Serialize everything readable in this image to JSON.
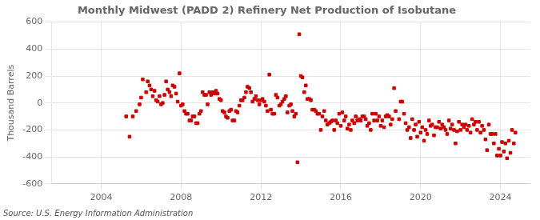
{
  "chart_data": {
    "type": "scatter",
    "title": "Monthly Midwest (PADD 2) Refinery Net Production of Isobutane",
    "ylabel": "Thousand Barrels",
    "source": "Source: U.S. Energy Information Administration",
    "color": "#cc0000",
    "marker": "square",
    "grid": true,
    "xlim": [
      2001.5,
      2025.5
    ],
    "xticks": [
      2004,
      2008,
      2012,
      2016,
      2020,
      2024
    ],
    "ylim": [
      -600,
      600
    ],
    "yticks": [
      -600,
      -400,
      -200,
      0,
      200,
      400,
      600
    ],
    "x": [
      2005.25,
      2005.42,
      2005.58,
      2005.75,
      2005.92,
      2006.08,
      2006.25,
      2006.42,
      2006.58,
      2006.75,
      2006.92,
      2007.08,
      2007.25,
      2007.42,
      2007.58,
      2007.75,
      2007.92,
      2008.08,
      2008.25,
      2008.42,
      2008.58,
      2008.75,
      2008.92,
      2009.08,
      2009.25,
      2009.42,
      2009.58,
      2009.75,
      2009.92,
      2010.08,
      2010.25,
      2010.42,
      2010.58,
      2010.75,
      2010.92,
      2011.08,
      2011.25,
      2011.42,
      2011.58,
      2011.75,
      2011.92,
      2012.08,
      2012.25,
      2012.42,
      2012.58,
      2012.75,
      2012.92,
      2013.08,
      2013.25,
      2013.42,
      2013.58,
      2013.75,
      2013.83,
      2013.92,
      2014.08,
      2014.25,
      2014.42,
      2014.58,
      2014.75,
      2014.92,
      2015.08,
      2015.25,
      2015.42,
      2015.58,
      2015.75,
      2015.92,
      2016.08,
      2016.25,
      2016.42,
      2016.58,
      2016.75,
      2016.92,
      2017.08,
      2017.25,
      2017.42,
      2017.58,
      2017.75,
      2017.92,
      2018.08,
      2018.25,
      2018.42,
      2018.58,
      2018.67,
      2018.75,
      2018.92,
      2019.08,
      2019.25,
      2019.42,
      2019.58,
      2019.75,
      2019.92,
      2020.08,
      2020.25,
      2020.42,
      2020.58,
      2020.75,
      2020.92,
      2021.08,
      2021.25,
      2021.42,
      2021.58,
      2021.75,
      2021.92,
      2022.08,
      2022.25,
      2022.42,
      2022.58,
      2022.75,
      2022.92,
      2023.08,
      2023.25,
      2023.42,
      2023.58,
      2023.75,
      2023.92,
      2024.08,
      2024.25,
      2024.42,
      2024.58,
      2024.75,
      2006.0,
      2006.33,
      2006.5,
      2006.67,
      2006.83,
      2007.0,
      2007.17,
      2007.33,
      2007.5,
      2007.67,
      2007.83,
      2008.0,
      2008.17,
      2008.33,
      2008.5,
      2008.67,
      2008.83,
      2009.0,
      2009.17,
      2009.33,
      2009.5,
      2009.67,
      2009.83,
      2010.0,
      2010.17,
      2010.33,
      2010.5,
      2010.67,
      2010.83,
      2011.0,
      2011.17,
      2011.33,
      2011.5,
      2011.67,
      2011.83,
      2012.0,
      2012.17,
      2012.33,
      2012.5,
      2012.67,
      2012.83,
      2013.0,
      2013.17,
      2013.33,
      2013.5,
      2013.67,
      2014.0,
      2014.17,
      2014.33,
      2014.5,
      2014.67,
      2014.83,
      2015.0,
      2015.17,
      2015.33,
      2015.5,
      2015.67,
      2015.83,
      2016.0,
      2016.17,
      2016.33,
      2016.5,
      2016.67,
      2016.83,
      2017.0,
      2017.17,
      2017.33,
      2017.5,
      2017.67,
      2017.83,
      2018.0,
      2018.17,
      2018.33,
      2018.5,
      2019.0,
      2019.17,
      2019.33,
      2019.5,
      2019.67,
      2019.83,
      2020.0,
      2020.17,
      2020.33,
      2020.5,
      2020.67,
      2020.83,
      2021.0,
      2021.17,
      2021.33,
      2021.5,
      2021.67,
      2021.83,
      2022.0,
      2022.17,
      2022.33,
      2022.5,
      2022.67,
      2022.83,
      2023.0,
      2023.17,
      2023.33,
      2023.5,
      2023.67,
      2023.83,
      2024.0,
      2024.17,
      2024.33,
      2024.5,
      2024.67
    ],
    "values": [
      -100,
      -250,
      -100,
      -60,
      -10,
      175,
      80,
      130,
      50,
      20,
      50,
      0,
      160,
      80,
      130,
      70,
      220,
      -10,
      -80,
      -130,
      -100,
      -150,
      -80,
      80,
      60,
      80,
      80,
      90,
      30,
      -60,
      -100,
      -60,
      -130,
      -60,
      -20,
      20,
      80,
      110,
      10,
      50,
      -10,
      30,
      -20,
      210,
      -80,
      60,
      -20,
      10,
      50,
      -20,
      -60,
      -80,
      -440,
      510,
      190,
      130,
      30,
      -50,
      -60,
      -80,
      -100,
      -130,
      -150,
      -130,
      -130,
      -80,
      -70,
      -100,
      -160,
      -130,
      -100,
      -120,
      -100,
      -120,
      -150,
      -80,
      -80,
      -100,
      -130,
      -100,
      -100,
      -120,
      110,
      -60,
      -120,
      10,
      -150,
      -180,
      -120,
      -160,
      -140,
      -180,
      -200,
      -130,
      -160,
      -180,
      -140,
      -160,
      -200,
      -130,
      -160,
      -300,
      -140,
      -160,
      -160,
      -170,
      -120,
      -140,
      -140,
      -170,
      -270,
      -160,
      -230,
      -230,
      -340,
      -290,
      -300,
      -280,
      -200,
      -220,
      40,
      160,
      100,
      90,
      10,
      -10,
      60,
      100,
      50,
      120,
      10,
      -20,
      -60,
      -80,
      -130,
      -100,
      -150,
      -60,
      60,
      -10,
      60,
      70,
      70,
      20,
      -70,
      -110,
      -50,
      -130,
      -70,
      20,
      40,
      120,
      80,
      30,
      20,
      20,
      10,
      -60,
      -50,
      -80,
      40,
      -10,
      30,
      -70,
      -10,
      -100,
      200,
      80,
      30,
      20,
      -50,
      -80,
      -200,
      -60,
      -160,
      -140,
      -200,
      -150,
      -170,
      -130,
      -190,
      -200,
      -150,
      -130,
      -130,
      -100,
      -170,
      -200,
      -130,
      -130,
      -170,
      -180,
      -90,
      -160,
      10,
      -80,
      -200,
      -260,
      -200,
      -250,
      -220,
      -280,
      -230,
      -170,
      -240,
      -180,
      -190,
      -180,
      -230,
      -190,
      -200,
      -210,
      -200,
      -180,
      -200,
      -220,
      -160,
      -200,
      -220,
      -200,
      -350,
      -230,
      -300,
      -390,
      -390,
      -360,
      -410,
      -370,
      -300
    ]
  }
}
